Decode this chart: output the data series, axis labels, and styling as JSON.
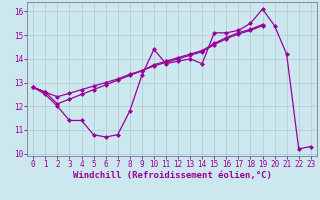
{
  "x": [
    0,
    1,
    2,
    3,
    4,
    5,
    6,
    7,
    8,
    9,
    10,
    11,
    12,
    13,
    14,
    15,
    16,
    17,
    18,
    19,
    20,
    21,
    22,
    23
  ],
  "line1": [
    12.8,
    12.5,
    12.0,
    11.4,
    11.4,
    10.8,
    10.7,
    10.8,
    11.8,
    13.3,
    14.4,
    13.8,
    13.9,
    14.0,
    13.8,
    15.1,
    15.1,
    15.2,
    15.5,
    16.1,
    15.4,
    14.2,
    10.2,
    10.3
  ],
  "line2_x": [
    0,
    1,
    2,
    3,
    4,
    5,
    6,
    7,
    8,
    9,
    10,
    11,
    12,
    13,
    14,
    15,
    16,
    17,
    18,
    19
  ],
  "line2_y": [
    12.8,
    12.6,
    12.4,
    12.55,
    12.7,
    12.85,
    13.0,
    13.15,
    13.35,
    13.5,
    13.7,
    13.85,
    14.0,
    14.15,
    14.3,
    14.6,
    14.85,
    15.05,
    15.2,
    15.4
  ],
  "line3_x": [
    0,
    1,
    2,
    3,
    4,
    5,
    6,
    7,
    8,
    9,
    10,
    11,
    12,
    13,
    14,
    15,
    16,
    17,
    18,
    19
  ],
  "line3_y": [
    12.8,
    12.6,
    12.1,
    12.3,
    12.5,
    12.7,
    12.9,
    13.1,
    13.3,
    13.5,
    13.75,
    13.9,
    14.05,
    14.2,
    14.35,
    14.65,
    14.9,
    15.1,
    15.25,
    15.45
  ],
  "line_color": "#990099",
  "bg_color": "#cce8ee",
  "grid_color": "#b0d0d8",
  "xlabel": "Windchill (Refroidissement éolien,°C)",
  "ylim": [
    9.9,
    16.4
  ],
  "xlim": [
    -0.5,
    23.5
  ],
  "yticks": [
    10,
    11,
    12,
    13,
    14,
    15,
    16
  ],
  "xticks": [
    0,
    1,
    2,
    3,
    4,
    5,
    6,
    7,
    8,
    9,
    10,
    11,
    12,
    13,
    14,
    15,
    16,
    17,
    18,
    19,
    20,
    21,
    22,
    23
  ],
  "marker": "D",
  "markersize": 2,
  "linewidth": 0.9,
  "xlabel_fontsize": 6.5,
  "tick_fontsize": 5.5
}
